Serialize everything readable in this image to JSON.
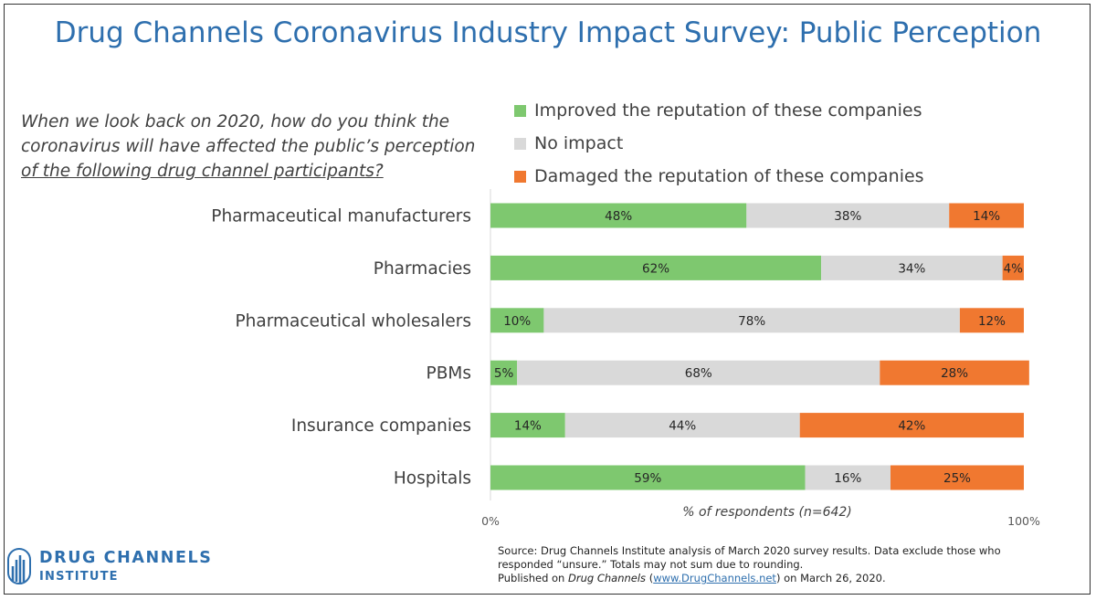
{
  "title": "Drug Channels Coronavirus Industry Impact Survey: Public Perception",
  "question": {
    "line1": "When we look back on 2020, how do you think the",
    "line2": "coronavirus will have affected the public’s perception",
    "line3": "of the following drug channel participants?"
  },
  "chart_data": {
    "type": "bar",
    "orientation": "horizontal",
    "stacked": true,
    "categories": [
      "Pharmaceutical manufacturers",
      "Pharmacies",
      "Pharmaceutical wholesalers",
      "PBMs",
      "Insurance companies",
      "Hospitals"
    ],
    "series": [
      {
        "name": "Improved the reputation of these companies",
        "color": "#7ec86f",
        "values": [
          48,
          62,
          10,
          5,
          14,
          59
        ],
        "labels": [
          "48%",
          "62%",
          "10%",
          "5%",
          "14%",
          "59%"
        ]
      },
      {
        "name": "No impact",
        "color": "#d9d9d9",
        "values": [
          38,
          34,
          78,
          68,
          44,
          16
        ],
        "labels": [
          "38%",
          "34%",
          "78%",
          "68%",
          "44%",
          "16%"
        ]
      },
      {
        "name": "Damaged the reputation of these companies",
        "color": "#f07830",
        "values": [
          14,
          4,
          12,
          28,
          42,
          25
        ],
        "labels": [
          "14%",
          "4%",
          "12%",
          "28%",
          "42%",
          "25%"
        ]
      }
    ],
    "xlabel": "% of respondents (n=642)",
    "xlim": [
      0,
      100
    ],
    "xticks": [
      "0%",
      "100%"
    ],
    "legend_position": "top"
  },
  "source": {
    "line1": "Source: Drug Channels Institute analysis of March 2020 survey results. Data exclude those who",
    "line2": "responded “unsure.” Totals may not sum due to rounding.",
    "published_prefix": "Published on ",
    "published_italic": "Drug Channels",
    "published_open": " (",
    "link_text": "www.DrugChannels.net",
    "published_suffix": ") on March 26, 2020."
  },
  "logo": {
    "line1": "DRUG CHANNELS",
    "line2": "INSTITUTE",
    "color": "#2e6fae"
  }
}
